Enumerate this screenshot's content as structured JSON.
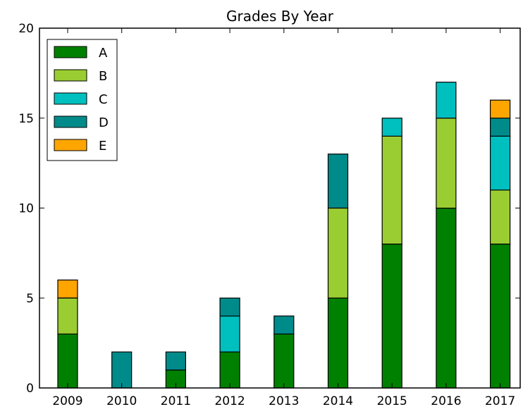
{
  "chart_data": {
    "type": "bar",
    "stacked": true,
    "title": "Grades By Year",
    "xlabel": "",
    "ylabel": "",
    "categories": [
      "2009",
      "2010",
      "2011",
      "2012",
      "2013",
      "2014",
      "2015",
      "2016",
      "2017"
    ],
    "series": [
      {
        "name": "A",
        "color": "#008000",
        "values": [
          3,
          0,
          1,
          2,
          3,
          5,
          8,
          10,
          8
        ]
      },
      {
        "name": "B",
        "color": "#9acd32",
        "values": [
          2,
          0,
          0,
          0,
          0,
          5,
          6,
          5,
          3
        ]
      },
      {
        "name": "C",
        "color": "#00bfbf",
        "values": [
          0,
          0,
          0,
          2,
          0,
          0,
          1,
          2,
          3
        ]
      },
      {
        "name": "D",
        "color": "#008b8b",
        "values": [
          0,
          2,
          1,
          1,
          1,
          3,
          0,
          0,
          1
        ]
      },
      {
        "name": "E",
        "color": "#ffa500",
        "values": [
          1,
          0,
          0,
          0,
          0,
          0,
          0,
          0,
          1
        ]
      }
    ],
    "ylim": [
      0,
      20
    ],
    "yticks": [
      "0",
      "5",
      "10",
      "15",
      "20"
    ],
    "grid": false,
    "legend_position": "top-left"
  }
}
